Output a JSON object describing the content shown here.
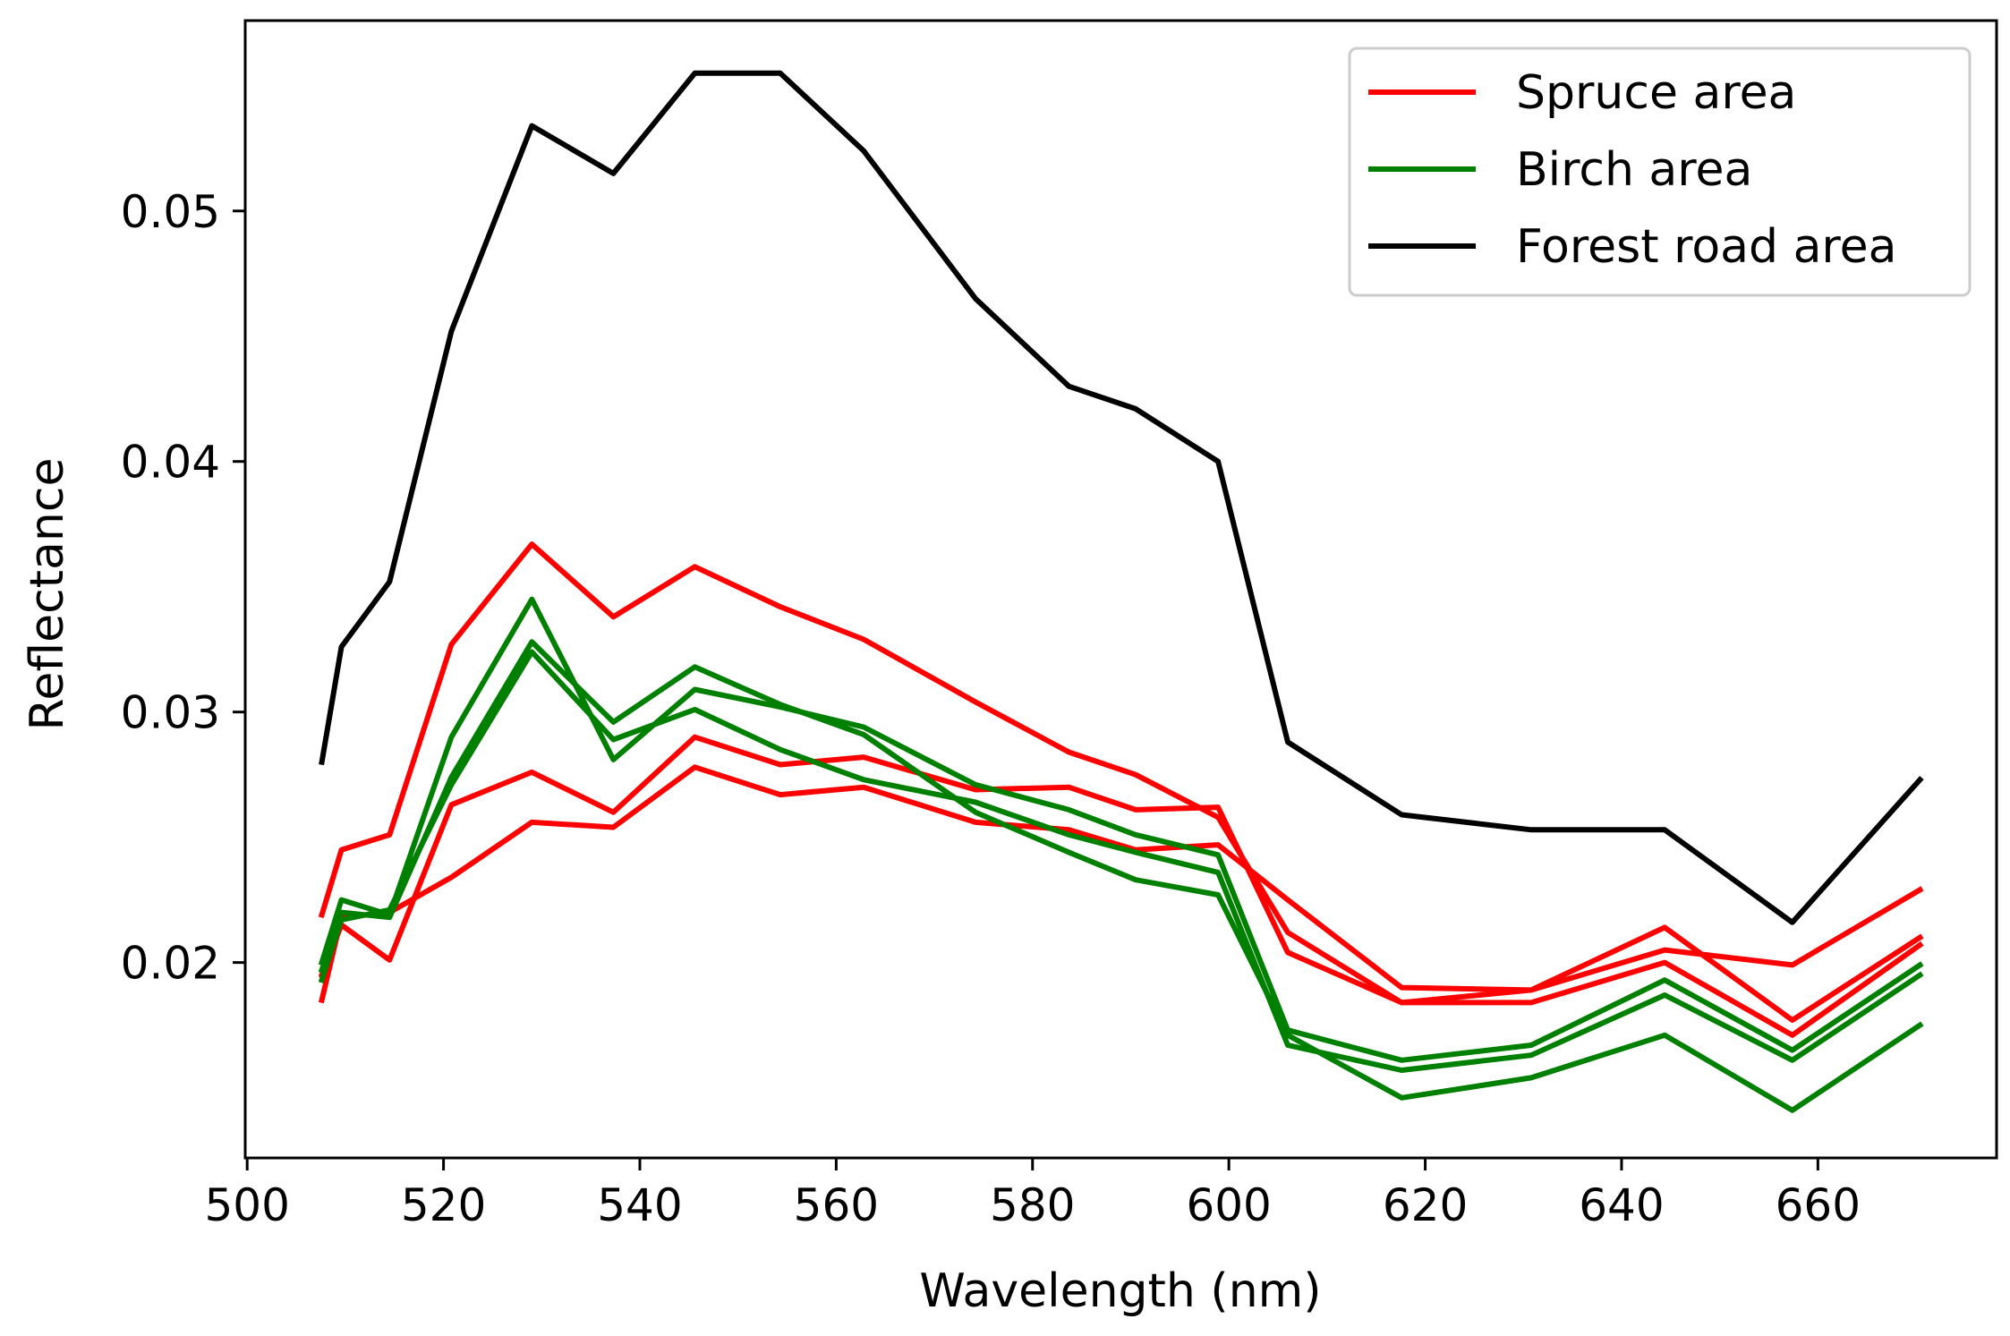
{
  "chart_data": {
    "type": "line",
    "title": "",
    "xlabel": "Wavelength (nm)",
    "ylabel": "Reflectance",
    "xlim": [
      499.8,
      678.2
    ],
    "ylim": [
      0.0122,
      0.0576
    ],
    "xticks": [
      500,
      520,
      540,
      560,
      580,
      600,
      620,
      640,
      660
    ],
    "xtick_labels": [
      "500",
      "520",
      "540",
      "560",
      "580",
      "600",
      "620",
      "640",
      "660"
    ],
    "yticks": [
      0.02,
      0.03,
      0.04,
      0.05
    ],
    "ytick_labels": [
      "0.02",
      "0.03",
      "0.04",
      "0.05"
    ],
    "grid": false,
    "legend_position": "top-right",
    "legend": [
      {
        "label": "Spruce area",
        "color": "#ff0000"
      },
      {
        "label": "Birch area",
        "color": "#008000"
      },
      {
        "label": "Forest road area",
        "color": "#000000"
      }
    ],
    "x": [
      507.6,
      509.6,
      514.5,
      520.8,
      529.0,
      537.3,
      545.6,
      554.3,
      562.8,
      574.2,
      583.7,
      590.5,
      598.9,
      606.0,
      617.6,
      630.8,
      644.4,
      657.4,
      670.4
    ],
    "series": [
      {
        "name": "Spruce area",
        "color": "#ff0000",
        "values": [
          0.0219,
          0.0245,
          0.0251,
          0.0327,
          0.0367,
          0.0338,
          0.0358,
          0.0342,
          0.0329,
          0.0304,
          0.0284,
          0.0275,
          0.0258,
          0.0212,
          0.0184,
          0.0184,
          0.02,
          0.0171,
          0.0207
        ]
      },
      {
        "name": "Spruce area",
        "color": "#ff0000",
        "values": [
          0.0195,
          0.0215,
          0.0201,
          0.0263,
          0.0276,
          0.026,
          0.029,
          0.0279,
          0.0282,
          0.0269,
          0.027,
          0.0261,
          0.0262,
          0.0204,
          0.0184,
          0.0189,
          0.0214,
          0.0177,
          0.021
        ]
      },
      {
        "name": "Spruce area",
        "color": "#ff0000",
        "values": [
          0.0185,
          0.0218,
          0.022,
          0.0234,
          0.0256,
          0.0254,
          0.0278,
          0.0267,
          0.027,
          0.0256,
          0.0253,
          0.0245,
          0.0247,
          0.0225,
          0.019,
          0.0189,
          0.0205,
          0.0199,
          0.0229
        ]
      },
      {
        "name": "Birch area",
        "color": "#008000",
        "values": [
          0.02,
          0.0225,
          0.0219,
          0.029,
          0.0345,
          0.0281,
          0.0309,
          0.0302,
          0.0294,
          0.0271,
          0.0261,
          0.0251,
          0.0243,
          0.0173,
          0.0161,
          0.0167,
          0.0193,
          0.0165,
          0.0199
        ]
      },
      {
        "name": "Birch area",
        "color": "#008000",
        "values": [
          0.0197,
          0.022,
          0.0218,
          0.0274,
          0.0328,
          0.0296,
          0.0318,
          0.0303,
          0.0291,
          0.026,
          0.0244,
          0.0233,
          0.0227,
          0.0171,
          0.0146,
          0.0154,
          0.0171,
          0.0141,
          0.0175
        ]
      },
      {
        "name": "Birch area",
        "color": "#008000",
        "values": [
          0.0193,
          0.0217,
          0.0221,
          0.0271,
          0.0324,
          0.0289,
          0.0301,
          0.0285,
          0.0273,
          0.0264,
          0.0251,
          0.0244,
          0.0236,
          0.0167,
          0.0157,
          0.0163,
          0.0187,
          0.0161,
          0.0195
        ]
      },
      {
        "name": "Forest road area",
        "color": "#000000",
        "values": [
          0.028,
          0.0326,
          0.0352,
          0.0452,
          0.0534,
          0.0515,
          0.0555,
          0.0555,
          0.0524,
          0.0465,
          0.043,
          0.0421,
          0.04,
          0.0288,
          0.0259,
          0.0253,
          0.0253,
          0.0216,
          0.0273
        ]
      }
    ]
  }
}
